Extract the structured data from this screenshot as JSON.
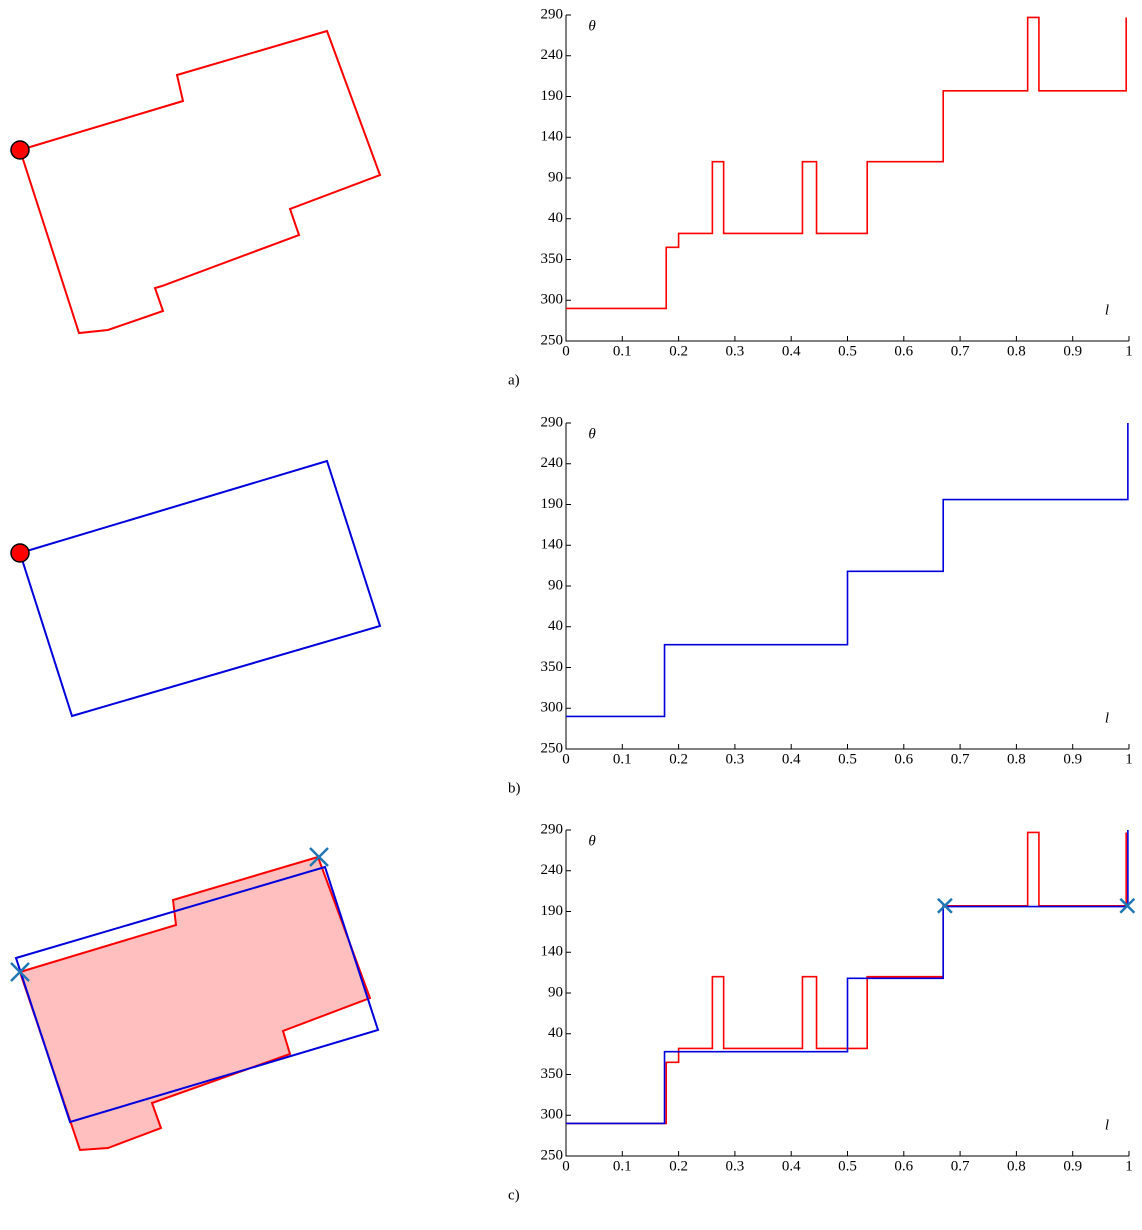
{
  "chart_data": [
    {
      "type": "line",
      "panel_label": "a)",
      "y_label": "θ",
      "x_label": "l",
      "xlim": [
        0,
        1
      ],
      "ylim": [
        250,
        650
      ],
      "xticks": [
        0,
        0.1,
        0.2,
        0.3,
        0.4,
        0.5,
        0.6,
        0.7,
        0.8,
        0.9,
        1
      ],
      "yticks": [
        250,
        300,
        350,
        {
          "value": 400,
          "label": "40"
        },
        {
          "value": 450,
          "label": "90"
        },
        {
          "value": 500,
          "label": "140"
        },
        {
          "value": 550,
          "label": "190"
        },
        {
          "value": 600,
          "label": "240"
        },
        {
          "value": 650,
          "label": "290"
        }
      ],
      "series": [
        {
          "color": "#ff0000",
          "x": [
            0,
            0.178,
            0.178,
            0.2,
            0.2,
            0.26,
            0.26,
            0.28,
            0.28,
            0.42,
            0.42,
            0.445,
            0.445,
            0.535,
            0.535,
            0.67,
            0.67,
            0.82,
            0.82,
            0.84,
            0.84,
            0.995,
            0.995
          ],
          "values": [
            290,
            290,
            365,
            365,
            382,
            382,
            470,
            470,
            382,
            382,
            470,
            470,
            382,
            382,
            470,
            470,
            557,
            557,
            647,
            647,
            557,
            557,
            647
          ]
        }
      ]
    },
    {
      "type": "line",
      "panel_label": "b)",
      "y_label": "θ",
      "x_label": "l",
      "xlim": [
        0,
        1
      ],
      "ylim": [
        250,
        650
      ],
      "xticks": [
        0,
        0.1,
        0.2,
        0.3,
        0.4,
        0.5,
        0.6,
        0.7,
        0.8,
        0.9,
        1
      ],
      "yticks": [
        250,
        300,
        350,
        {
          "value": 400,
          "label": "40"
        },
        {
          "value": 450,
          "label": "90"
        },
        {
          "value": 500,
          "label": "140"
        },
        {
          "value": 550,
          "label": "190"
        },
        {
          "value": 600,
          "label": "240"
        },
        {
          "value": 650,
          "label": "290"
        }
      ],
      "series": [
        {
          "color": "#0000dd",
          "x": [
            0,
            0.175,
            0.175,
            0.5,
            0.5,
            0.67,
            0.67,
            0.998,
            0.998
          ],
          "values": [
            290,
            290,
            378,
            378,
            468,
            468,
            556,
            556,
            650
          ]
        }
      ]
    },
    {
      "type": "line",
      "panel_label": "c)",
      "y_label": "θ",
      "x_label": "l",
      "xlim": [
        0,
        1
      ],
      "ylim": [
        250,
        650
      ],
      "xticks": [
        0,
        0.1,
        0.2,
        0.3,
        0.4,
        0.5,
        0.6,
        0.7,
        0.8,
        0.9,
        1
      ],
      "yticks": [
        250,
        300,
        350,
        {
          "value": 400,
          "label": "40"
        },
        {
          "value": 450,
          "label": "90"
        },
        {
          "value": 500,
          "label": "140"
        },
        {
          "value": 550,
          "label": "190"
        },
        {
          "value": 600,
          "label": "240"
        },
        {
          "value": 650,
          "label": "290"
        }
      ],
      "series": [
        {
          "color": "#ff0000",
          "x": [
            0,
            0.178,
            0.178,
            0.2,
            0.2,
            0.26,
            0.26,
            0.28,
            0.28,
            0.42,
            0.42,
            0.445,
            0.445,
            0.535,
            0.535,
            0.67,
            0.67,
            0.82,
            0.82,
            0.84,
            0.84,
            0.995,
            0.995
          ],
          "values": [
            290,
            290,
            365,
            365,
            382,
            382,
            470,
            470,
            382,
            382,
            470,
            470,
            382,
            382,
            470,
            470,
            557,
            557,
            647,
            647,
            557,
            557,
            647
          ]
        },
        {
          "color": "#0000dd",
          "x": [
            0,
            0.175,
            0.175,
            0.5,
            0.5,
            0.67,
            0.67,
            0.998,
            0.998
          ],
          "values": [
            290,
            290,
            378,
            378,
            468,
            468,
            556,
            556,
            650
          ]
        }
      ],
      "points": {
        "color": "#1f77b4",
        "x": [
          0.673,
          0.997
        ],
        "values": [
          557,
          557
        ]
      }
    }
  ]
}
